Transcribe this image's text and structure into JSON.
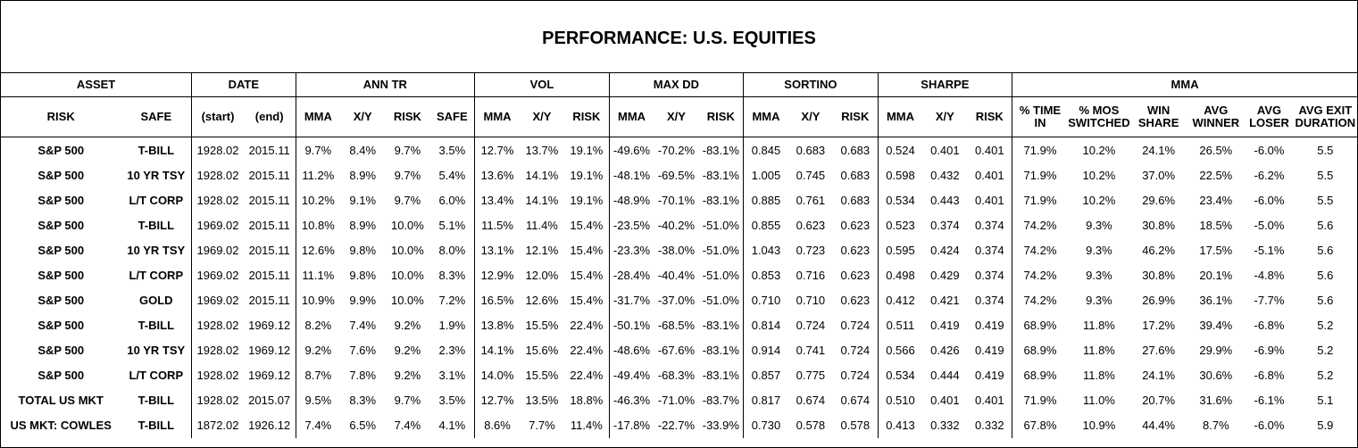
{
  "title": "PERFORMANCE: U.S. EQUITIES",
  "group_headers": [
    "ASSET",
    "DATE",
    "ANN TR",
    "VOL",
    "MAX DD",
    "SORTINO",
    "SHARPE",
    "MMA"
  ],
  "sub_headers": [
    "RISK",
    "SAFE",
    "(start)",
    "(end)",
    "MMA",
    "X/Y",
    "RISK",
    "SAFE",
    "MMA",
    "X/Y",
    "RISK",
    "MMA",
    "X/Y",
    "RISK",
    "MMA",
    "X/Y",
    "RISK",
    "MMA",
    "X/Y",
    "RISK",
    "% TIME IN",
    "% MOS SWITCHED",
    "WIN SHARE",
    "AVG WINNER",
    "AVG LOSER",
    "AVG EXIT DURATION"
  ],
  "rows": [
    [
      "S&P 500",
      "T-BILL",
      "1928.02",
      "2015.11",
      "9.7%",
      "8.4%",
      "9.7%",
      "3.5%",
      "12.7%",
      "13.7%",
      "19.1%",
      "-49.6%",
      "-70.2%",
      "-83.1%",
      "0.845",
      "0.683",
      "0.683",
      "0.524",
      "0.401",
      "0.401",
      "71.9%",
      "10.2%",
      "24.1%",
      "26.5%",
      "-6.0%",
      "5.5"
    ],
    [
      "S&P 500",
      "10 YR TSY",
      "1928.02",
      "2015.11",
      "11.2%",
      "8.9%",
      "9.7%",
      "5.4%",
      "13.6%",
      "14.1%",
      "19.1%",
      "-48.1%",
      "-69.5%",
      "-83.1%",
      "1.005",
      "0.745",
      "0.683",
      "0.598",
      "0.432",
      "0.401",
      "71.9%",
      "10.2%",
      "37.0%",
      "22.5%",
      "-6.2%",
      "5.5"
    ],
    [
      "S&P 500",
      "L/T CORP",
      "1928.02",
      "2015.11",
      "10.2%",
      "9.1%",
      "9.7%",
      "6.0%",
      "13.4%",
      "14.1%",
      "19.1%",
      "-48.9%",
      "-70.1%",
      "-83.1%",
      "0.885",
      "0.761",
      "0.683",
      "0.534",
      "0.443",
      "0.401",
      "71.9%",
      "10.2%",
      "29.6%",
      "23.4%",
      "-6.0%",
      "5.5"
    ],
    [
      "S&P 500",
      "T-BILL",
      "1969.02",
      "2015.11",
      "10.8%",
      "8.9%",
      "10.0%",
      "5.1%",
      "11.5%",
      "11.4%",
      "15.4%",
      "-23.5%",
      "-40.2%",
      "-51.0%",
      "0.855",
      "0.623",
      "0.623",
      "0.523",
      "0.374",
      "0.374",
      "74.2%",
      "9.3%",
      "30.8%",
      "18.5%",
      "-5.0%",
      "5.6"
    ],
    [
      "S&P 500",
      "10 YR TSY",
      "1969.02",
      "2015.11",
      "12.6%",
      "9.8%",
      "10.0%",
      "8.0%",
      "13.1%",
      "12.1%",
      "15.4%",
      "-23.3%",
      "-38.0%",
      "-51.0%",
      "1.043",
      "0.723",
      "0.623",
      "0.595",
      "0.424",
      "0.374",
      "74.2%",
      "9.3%",
      "46.2%",
      "17.5%",
      "-5.1%",
      "5.6"
    ],
    [
      "S&P 500",
      "L/T CORP",
      "1969.02",
      "2015.11",
      "11.1%",
      "9.8%",
      "10.0%",
      "8.3%",
      "12.9%",
      "12.0%",
      "15.4%",
      "-28.4%",
      "-40.4%",
      "-51.0%",
      "0.853",
      "0.716",
      "0.623",
      "0.498",
      "0.429",
      "0.374",
      "74.2%",
      "9.3%",
      "30.8%",
      "20.1%",
      "-4.8%",
      "5.6"
    ],
    [
      "S&P 500",
      "GOLD",
      "1969.02",
      "2015.11",
      "10.9%",
      "9.9%",
      "10.0%",
      "7.2%",
      "16.5%",
      "12.6%",
      "15.4%",
      "-31.7%",
      "-37.0%",
      "-51.0%",
      "0.710",
      "0.710",
      "0.623",
      "0.412",
      "0.421",
      "0.374",
      "74.2%",
      "9.3%",
      "26.9%",
      "36.1%",
      "-7.7%",
      "5.6"
    ],
    [
      "S&P 500",
      "T-BILL",
      "1928.02",
      "1969.12",
      "8.2%",
      "7.4%",
      "9.2%",
      "1.9%",
      "13.8%",
      "15.5%",
      "22.4%",
      "-50.1%",
      "-68.5%",
      "-83.1%",
      "0.814",
      "0.724",
      "0.724",
      "0.511",
      "0.419",
      "0.419",
      "68.9%",
      "11.8%",
      "17.2%",
      "39.4%",
      "-6.8%",
      "5.2"
    ],
    [
      "S&P 500",
      "10 YR TSY",
      "1928.02",
      "1969.12",
      "9.2%",
      "7.6%",
      "9.2%",
      "2.3%",
      "14.1%",
      "15.6%",
      "22.4%",
      "-48.6%",
      "-67.6%",
      "-83.1%",
      "0.914",
      "0.741",
      "0.724",
      "0.566",
      "0.426",
      "0.419",
      "68.9%",
      "11.8%",
      "27.6%",
      "29.9%",
      "-6.9%",
      "5.2"
    ],
    [
      "S&P 500",
      "L/T CORP",
      "1928.02",
      "1969.12",
      "8.7%",
      "7.8%",
      "9.2%",
      "3.1%",
      "14.0%",
      "15.5%",
      "22.4%",
      "-49.4%",
      "-68.3%",
      "-83.1%",
      "0.857",
      "0.775",
      "0.724",
      "0.534",
      "0.444",
      "0.419",
      "68.9%",
      "11.8%",
      "24.1%",
      "30.6%",
      "-6.8%",
      "5.2"
    ],
    [
      "TOTAL US MKT",
      "T-BILL",
      "1928.02",
      "2015.07",
      "9.5%",
      "8.3%",
      "9.7%",
      "3.5%",
      "12.7%",
      "13.5%",
      "18.8%",
      "-46.3%",
      "-71.0%",
      "-83.7%",
      "0.817",
      "0.674",
      "0.674",
      "0.510",
      "0.401",
      "0.401",
      "71.9%",
      "11.0%",
      "20.7%",
      "31.6%",
      "-6.1%",
      "5.1"
    ],
    [
      "US MKT: COWLES",
      "T-BILL",
      "1872.02",
      "1926.12",
      "7.4%",
      "6.5%",
      "7.4%",
      "4.1%",
      "8.6%",
      "7.7%",
      "11.4%",
      "-17.8%",
      "-22.7%",
      "-33.9%",
      "0.730",
      "0.578",
      "0.578",
      "0.413",
      "0.332",
      "0.332",
      "67.8%",
      "10.9%",
      "44.4%",
      "8.7%",
      "-6.0%",
      "5.9"
    ]
  ]
}
